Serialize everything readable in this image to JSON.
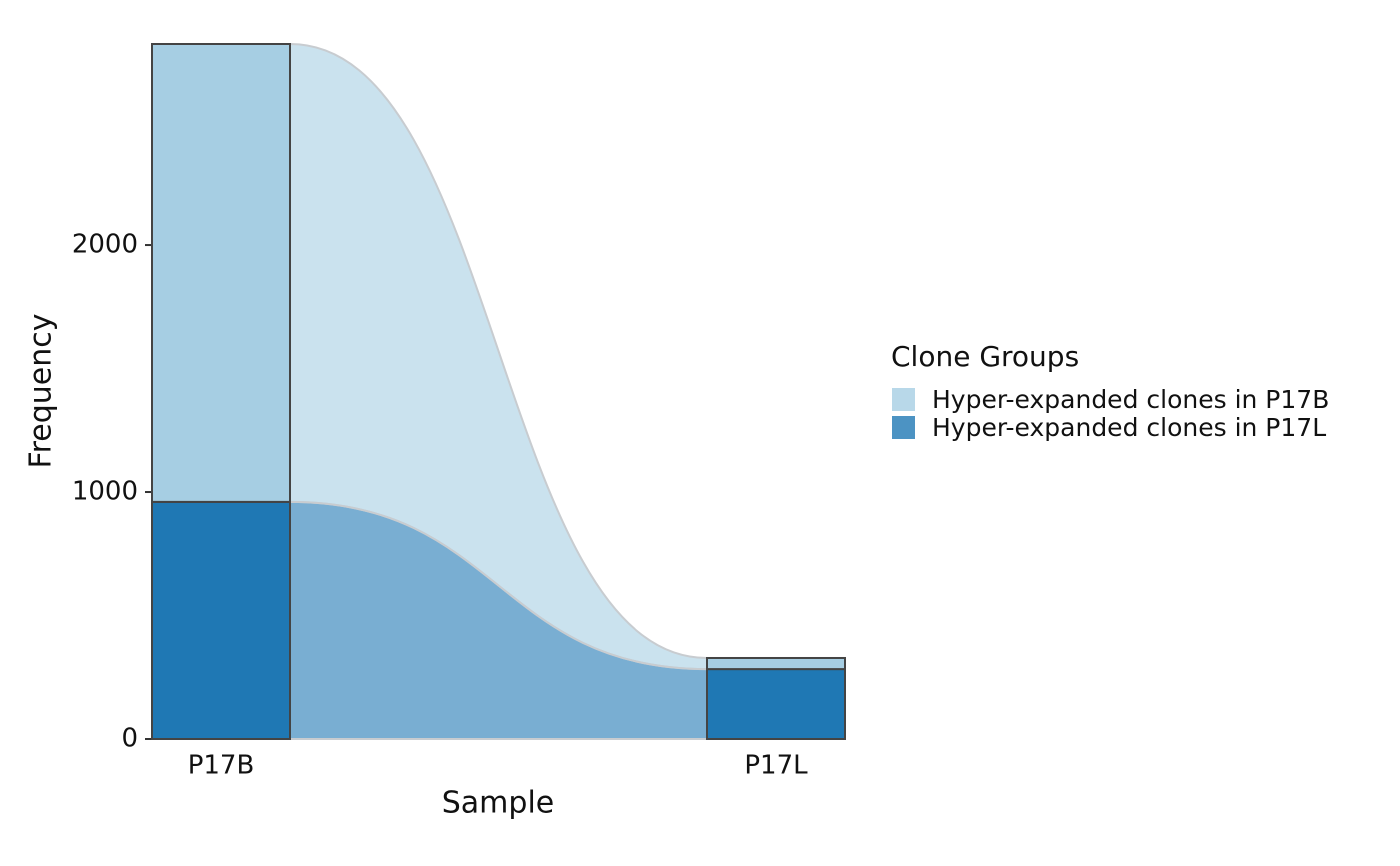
{
  "chart_data": {
    "type": "alluvial",
    "categories": [
      "P17B",
      "P17L"
    ],
    "series": [
      {
        "name": "Hyper-expanded clones in P17B",
        "color": "#a6cee3",
        "values": [
          1854,
          45
        ]
      },
      {
        "name": "Hyper-expanded clones in P17L",
        "color": "#1f78b4",
        "values": [
          960,
          283
        ]
      }
    ],
    "ylim": [
      0,
      2814
    ],
    "yticks": [
      0,
      1000,
      2000
    ],
    "x_label": "Sample",
    "y_label": "Frequency",
    "legend_title": "Clone Groups",
    "legend_position": "right"
  }
}
